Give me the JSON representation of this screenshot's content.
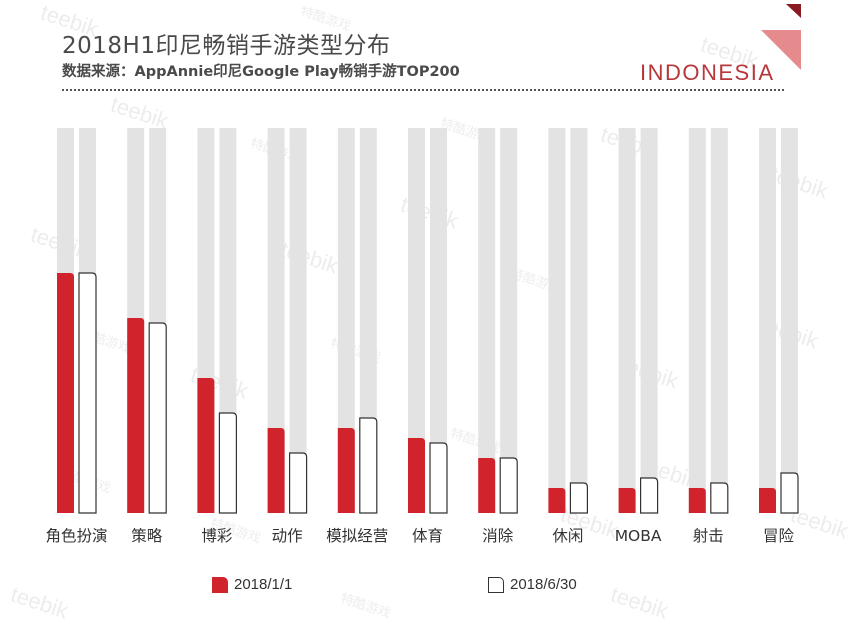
{
  "header": {
    "title": "2018H1印尼畅销手游类型分布",
    "subtitle": "数据来源：AppAnnie印尼Google Play畅销手游TOP200",
    "region": "INDONESIA"
  },
  "watermarks": [
    "teebik",
    "特酷游戏"
  ],
  "colors": {
    "series1_fill": "#d0232c",
    "series2_fill": "#ffffff",
    "series2_stroke": "#333333",
    "background_bar": "#e3e3e3",
    "accent": "#e58a8d",
    "accent_dark": "#8a1b22"
  },
  "chart_data": {
    "type": "bar",
    "categories": [
      "角色扮演",
      "策略",
      "博彩",
      "动作",
      "模拟经营",
      "体育",
      "消除",
      "休闲",
      "MOBA",
      "射击",
      "冒险"
    ],
    "series": [
      {
        "name": "2018/1/1",
        "values": [
          48,
          39,
          27,
          17,
          17,
          15,
          11,
          5,
          5,
          5,
          5
        ]
      },
      {
        "name": "2018/6/30",
        "values": [
          48,
          38,
          20,
          12,
          19,
          14,
          11,
          6,
          7,
          6,
          8
        ]
      }
    ],
    "ymax": 77,
    "grid": false,
    "legend_position": "bottom"
  }
}
